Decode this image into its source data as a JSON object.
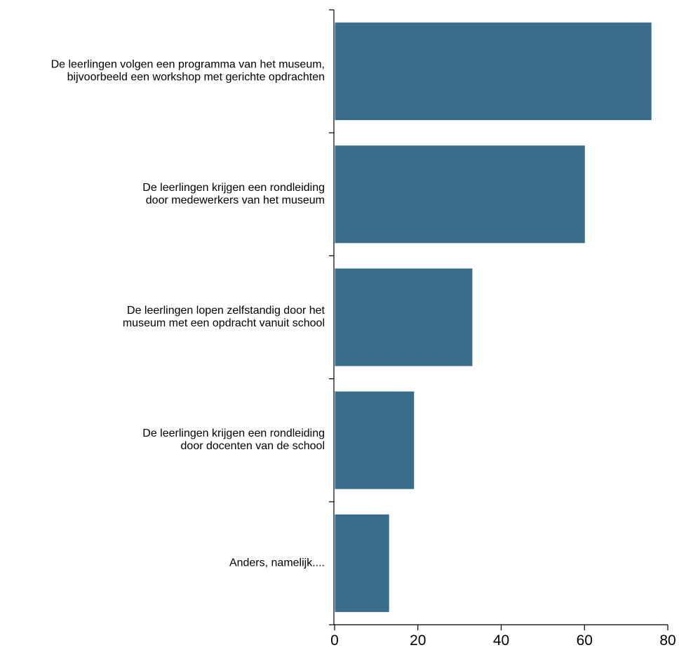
{
  "chart_data": {
    "type": "bar",
    "orientation": "horizontal",
    "categories": [
      [
        "De leerlingen volgen een programma van het museum,",
        "bijvoorbeeld een workshop met gerichte opdrachten"
      ],
      [
        "De leerlingen krijgen een rondleiding",
        "door medewerkers van het museum"
      ],
      [
        "De leerlingen lopen zelfstandig door het",
        "museum met een opdracht vanuit school"
      ],
      [
        "De leerlingen krijgen een rondleiding",
        "door docenten van de school"
      ],
      [
        "Anders, namelijk...."
      ]
    ],
    "values": [
      76,
      60,
      33,
      19,
      13
    ],
    "xlim": [
      0,
      80
    ],
    "x_ticks": [
      0,
      20,
      40,
      60,
      80
    ],
    "grid": false,
    "legend": "none",
    "colors": {
      "bar": "#386e8c",
      "axis": "#000000"
    }
  }
}
